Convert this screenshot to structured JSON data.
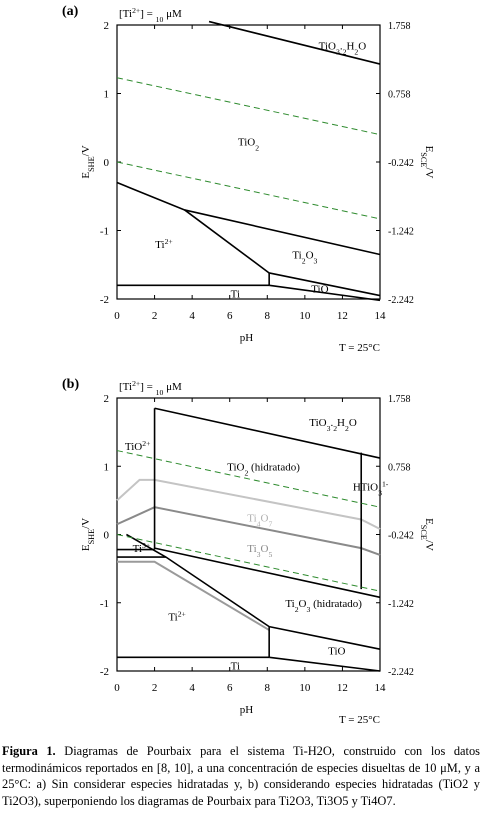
{
  "chart_data": [
    {
      "type": "line",
      "panel_label": "(a)",
      "subtitle": "[Ti2+] = 10 μM",
      "xlabel": "pH",
      "ylabel": "ESHE/V",
      "ylabel_right": "ESCE/V",
      "xlim": [
        0,
        14
      ],
      "ylim": [
        -2,
        2
      ],
      "x_ticks": [
        0,
        2,
        4,
        6,
        8,
        10,
        12,
        14
      ],
      "y_ticks": [
        2,
        1,
        0,
        -1,
        -2
      ],
      "y_ticks_right": [
        "1.758",
        "0.758",
        "-0.242",
        "-1.242",
        "-2.242"
      ],
      "temperature": "T = 25°C",
      "boundaries": [
        {
          "style": "solid",
          "x": [
            0,
            3.6,
            14
          ],
          "y": [
            -0.3,
            -0.7,
            -1.35
          ]
        },
        {
          "style": "solid",
          "x": [
            3.6,
            8.1
          ],
          "y": [
            -0.7,
            -1.62
          ]
        },
        {
          "style": "solid",
          "x": [
            8.1,
            14
          ],
          "y": [
            -1.62,
            -1.95
          ]
        },
        {
          "style": "solid",
          "x": [
            0,
            8.1
          ],
          "y": [
            -1.8,
            -1.8
          ]
        },
        {
          "style": "solid",
          "x": [
            8.1,
            8.1
          ],
          "y": [
            -1.62,
            -1.8
          ]
        },
        {
          "style": "solid",
          "x": [
            8.1,
            14
          ],
          "y": [
            -1.8,
            -2.02
          ]
        },
        {
          "style": "solid",
          "x": [
            4.9,
            14
          ],
          "y": [
            2.05,
            1.43
          ]
        },
        {
          "style": "dashed",
          "x": [
            0,
            14
          ],
          "y": [
            1.23,
            0.4
          ]
        },
        {
          "style": "dashed",
          "x": [
            0,
            14
          ],
          "y": [
            0,
            -0.83
          ]
        }
      ],
      "regions": [
        {
          "label": "TiO3.2H2O",
          "x": 12,
          "y": 1.7
        },
        {
          "label": "TiO2",
          "x": 7,
          "y": 0.3
        },
        {
          "label": "Ti2+",
          "x": 2.5,
          "y": -1.2
        },
        {
          "label": "Ti2O3",
          "x": 10,
          "y": -1.35
        },
        {
          "label": "TiO",
          "x": 10.8,
          "y": -1.85
        },
        {
          "label": "Ti",
          "x": 6.3,
          "y": -1.92
        }
      ]
    },
    {
      "type": "line",
      "panel_label": "(b)",
      "subtitle": "[Ti2+] = 10 μM",
      "xlabel": "pH",
      "ylabel": "ESHE/V",
      "ylabel_right": "ESCE/V",
      "xlim": [
        0,
        14
      ],
      "ylim": [
        -2,
        2
      ],
      "x_ticks": [
        0,
        2,
        4,
        6,
        8,
        10,
        12,
        14
      ],
      "y_ticks": [
        2,
        1,
        0,
        -1,
        -2
      ],
      "y_ticks_right": [
        "1.758",
        "0.758",
        "-0.242",
        "-1.242",
        "-2.242"
      ],
      "temperature": "T = 25°C",
      "boundaries": [
        {
          "style": "solid",
          "x": [
            2,
            14
          ],
          "y": [
            1.85,
            1.12
          ]
        },
        {
          "style": "solid",
          "x": [
            2,
            2
          ],
          "y": [
            1.85,
            -0.22
          ]
        },
        {
          "style": "solid",
          "x": [
            0,
            2
          ],
          "y": [
            -0.22,
            -0.22
          ]
        },
        {
          "style": "solid",
          "x": [
            13,
            13
          ],
          "y": [
            1.2,
            -0.8
          ]
        },
        {
          "style": "solid",
          "x": [
            2,
            14
          ],
          "y": [
            -0.2,
            -0.92
          ]
        },
        {
          "style": "solid",
          "x": [
            0,
            2.6
          ],
          "y": [
            -0.33,
            -0.33
          ]
        },
        {
          "style": "solid",
          "x": [
            0.5,
            2.6,
            8.1
          ],
          "y": [
            0,
            -0.33,
            -1.35
          ]
        },
        {
          "style": "solid",
          "x": [
            8.1,
            14
          ],
          "y": [
            -1.35,
            -1.68
          ]
        },
        {
          "style": "solid",
          "x": [
            0,
            8.1
          ],
          "y": [
            -1.8,
            -1.8
          ]
        },
        {
          "style": "solid",
          "x": [
            8.1,
            8.1
          ],
          "y": [
            -1.35,
            -1.8
          ]
        },
        {
          "style": "solid",
          "x": [
            8.1,
            14
          ],
          "y": [
            -1.8,
            -2.0
          ]
        },
        {
          "style": "dashed",
          "x": [
            0,
            14
          ],
          "y": [
            1.23,
            0.4
          ]
        },
        {
          "style": "dashed",
          "x": [
            0,
            14
          ],
          "y": [
            0,
            -0.83
          ]
        }
      ],
      "overlays": [
        {
          "name": "Ti4O7",
          "color": "#c4c4c4",
          "x": [
            0,
            1.2,
            2,
            13,
            14
          ],
          "y": [
            0.5,
            0.8,
            0.8,
            0.22,
            0.08
          ]
        },
        {
          "name": "Ti3O5",
          "color": "#8a8a8a",
          "x": [
            0,
            2,
            13,
            14
          ],
          "y": [
            0.15,
            0.4,
            -0.2,
            -0.3
          ]
        },
        {
          "name": "",
          "color": "#9a9a9a",
          "x": [
            0,
            2,
            8.1
          ],
          "y": [
            -0.4,
            -0.4,
            -1.4
          ]
        }
      ],
      "regions": [
        {
          "label": "TiO3.2H2O",
          "x": 11.5,
          "y": 1.65
        },
        {
          "label": "TiO2+",
          "x": 1.1,
          "y": 1.3
        },
        {
          "label": "TiO2 (hidratado)",
          "x": 7.8,
          "y": 1.0
        },
        {
          "label": "HTiO3 1-",
          "x": 13.5,
          "y": 0.7
        },
        {
          "label": "Ti4O7",
          "x": 7.6,
          "y": 0.25
        },
        {
          "label": "Ti3O5",
          "x": 7.6,
          "y": -0.2
        },
        {
          "label": "Ti3+",
          "x": 1.3,
          "y": -0.2
        },
        {
          "label": "Ti2O3 (hidratado)",
          "x": 11,
          "y": -1.0
        },
        {
          "label": "Ti2+",
          "x": 3.2,
          "y": -1.2
        },
        {
          "label": "TiO",
          "x": 11.7,
          "y": -1.7
        },
        {
          "label": "Ti",
          "x": 6.3,
          "y": -1.92
        }
      ]
    }
  ],
  "caption": {
    "label": "Figura 1.",
    "text": " Diagramas de Pourbaix para el sistema Ti-H2O, construido con los datos termodinámicos reportados en [8, 10], a una concentración de especies disueltas de 10 μM, y a 25°C: a) Sin considerar especies hidratadas y, b) considerando especies hidratadas (TiO2 y Ti2O3), superponiendo los diagramas de Pourbaix para Ti2O3, Ti3O5 y Ti4O7."
  }
}
